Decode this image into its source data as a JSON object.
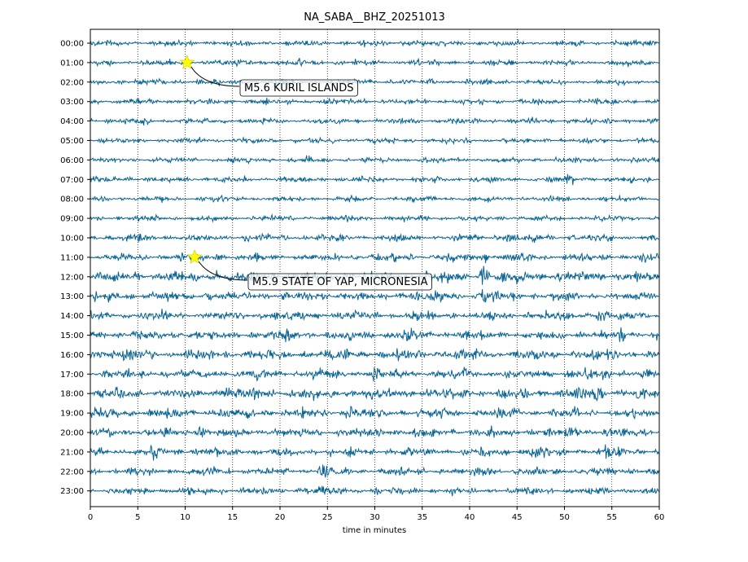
{
  "chart_data": {
    "type": "line",
    "title": "NA_SABA__BHZ_20251013",
    "xlabel": "time in minutes",
    "ylabel": "",
    "xlim": [
      0,
      60
    ],
    "x_ticks": [
      "0",
      "5",
      "10",
      "15",
      "20",
      "25",
      "30",
      "35",
      "40",
      "45",
      "50",
      "55",
      "60"
    ],
    "row_labels": [
      "00:00",
      "01:00",
      "02:00",
      "03:00",
      "04:00",
      "05:00",
      "06:00",
      "07:00",
      "08:00",
      "09:00",
      "10:00",
      "11:00",
      "12:00",
      "13:00",
      "14:00",
      "15:00",
      "16:00",
      "17:00",
      "18:00",
      "19:00",
      "20:00",
      "21:00",
      "22:00",
      "23:00"
    ],
    "trace_color": "#0a6494",
    "grid": "vertical dotted",
    "events": [
      {
        "label": "M5.6 KURIL ISLANDS",
        "row": "01:00",
        "minute": 10.2
      },
      {
        "label": "M5.9 STATE OF YAP, MICRONESIA",
        "row": "11:00",
        "minute": 11.0
      }
    ],
    "marker_color": "#ffff00"
  }
}
